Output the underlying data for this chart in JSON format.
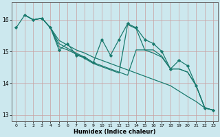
{
  "xlabel": "Humidex (Indice chaleur)",
  "background_color": "#cce8ee",
  "grid_color": "#c8a0a0",
  "line_color": "#1a7a6e",
  "xlim": [
    -0.5,
    23.5
  ],
  "ylim": [
    12.8,
    16.55
  ],
  "yticks": [
    13,
    14,
    15,
    16
  ],
  "xticks": [
    0,
    1,
    2,
    3,
    4,
    5,
    6,
    7,
    8,
    9,
    10,
    11,
    12,
    13,
    14,
    15,
    16,
    17,
    18,
    19,
    20,
    21,
    22,
    23
  ],
  "lines": [
    {
      "x": [
        0,
        1,
        2,
        3,
        4,
        5,
        6,
        7,
        8,
        9,
        10,
        11,
        12,
        13,
        14,
        15,
        16,
        17,
        18,
        19,
        20,
        21,
        22,
        23
      ],
      "y": [
        15.75,
        16.15,
        16.0,
        16.05,
        15.75,
        15.05,
        15.25,
        14.88,
        14.82,
        14.65,
        15.38,
        14.88,
        15.38,
        15.88,
        15.75,
        15.38,
        15.25,
        15.0,
        14.45,
        14.72,
        14.55,
        13.92,
        13.22,
        13.15
      ],
      "marker": true
    },
    {
      "x": [
        1,
        2,
        3,
        4,
        5,
        6,
        7,
        8,
        9,
        10,
        11,
        12,
        13,
        14,
        15,
        16,
        17,
        18,
        19,
        20,
        21,
        22,
        23
      ],
      "y": [
        16.15,
        16.0,
        16.05,
        15.75,
        15.35,
        15.2,
        15.05,
        14.95,
        14.82,
        14.72,
        14.62,
        14.52,
        14.42,
        14.32,
        14.22,
        14.12,
        14.02,
        13.92,
        13.75,
        13.58,
        13.42,
        13.22,
        13.15
      ],
      "marker": false
    },
    {
      "x": [
        1,
        2,
        3,
        4,
        5,
        6,
        7,
        8,
        9,
        10,
        11,
        12,
        13,
        14,
        15,
        16,
        17,
        18,
        19,
        20,
        21,
        22,
        23
      ],
      "y": [
        16.15,
        16.0,
        16.05,
        15.75,
        15.25,
        15.1,
        14.95,
        14.82,
        14.65,
        14.55,
        14.45,
        14.35,
        14.25,
        15.05,
        15.05,
        14.95,
        14.82,
        14.45,
        14.45,
        14.35,
        13.92,
        13.22,
        13.15
      ],
      "marker": false
    },
    {
      "x": [
        1,
        2,
        3,
        4,
        5,
        6,
        7,
        8,
        9,
        10,
        11,
        12,
        13,
        14,
        15,
        16,
        17,
        18,
        19,
        20,
        21,
        22,
        23
      ],
      "y": [
        16.15,
        16.0,
        16.05,
        15.75,
        15.15,
        15.05,
        14.92,
        14.78,
        14.62,
        14.52,
        14.42,
        14.32,
        15.85,
        15.72,
        15.05,
        15.05,
        14.85,
        14.45,
        14.45,
        14.35,
        13.92,
        13.22,
        13.15
      ],
      "marker": false
    }
  ]
}
